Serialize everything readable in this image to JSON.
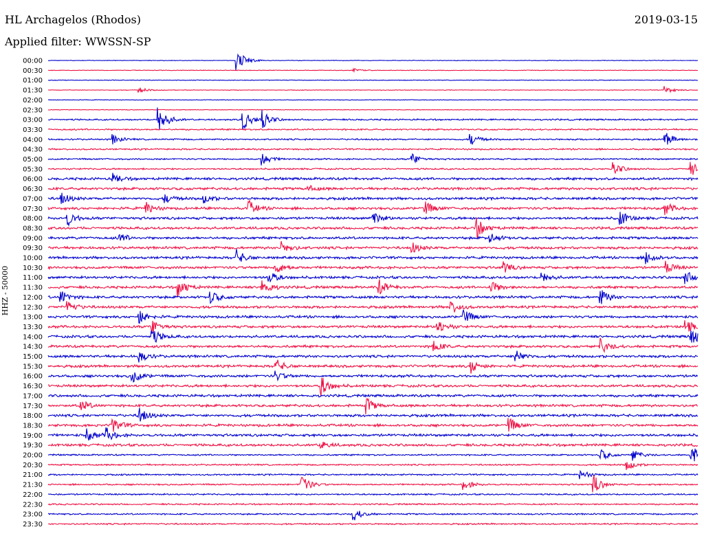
{
  "header": {
    "station": "HL Archagelos (Rhodos)",
    "filter": "Applied filter: WWSSN-SP",
    "date": "2019-03-15"
  },
  "chart_data": {
    "type": "line",
    "ylabel": "HHZ - 50000",
    "colors": [
      "#0000cc",
      "#ee1144"
    ],
    "tick_labels": [
      "00:00",
      "00:30",
      "01:00",
      "01:30",
      "02:00",
      "02:30",
      "03:00",
      "03:30",
      "04:00",
      "04:30",
      "05:00",
      "05:30",
      "06:00",
      "06:30",
      "07:00",
      "07:30",
      "08:00",
      "08:30",
      "09:00",
      "09:30",
      "10:00",
      "10:30",
      "11:00",
      "11:30",
      "12:00",
      "12:30",
      "13:00",
      "13:30",
      "14:00",
      "14:30",
      "15:00",
      "15:30",
      "16:00",
      "16:30",
      "17:00",
      "17:30",
      "18:00",
      "18:30",
      "19:00",
      "19:30",
      "20:00",
      "20:30",
      "21:00",
      "21:30",
      "22:00",
      "22:30",
      "23:00",
      "23:30"
    ],
    "events": [
      [
        0,
        0.29,
        3.0
      ],
      [
        1,
        0.47,
        0.4
      ],
      [
        3,
        0.14,
        0.6
      ],
      [
        3,
        0.95,
        0.8
      ],
      [
        6,
        0.17,
        3.5
      ],
      [
        6,
        0.3,
        2.2
      ],
      [
        6,
        0.33,
        2.0
      ],
      [
        8,
        0.1,
        1.0
      ],
      [
        8,
        0.65,
        1.3
      ],
      [
        8,
        0.95,
        1.5
      ],
      [
        10,
        0.33,
        1.3
      ],
      [
        10,
        0.56,
        1.2
      ],
      [
        11,
        0.87,
        1.6
      ],
      [
        11,
        0.99,
        1.4
      ],
      [
        12,
        0.1,
        1.0
      ],
      [
        13,
        0.4,
        0.6
      ],
      [
        14,
        0.02,
        1.2
      ],
      [
        14,
        0.18,
        0.9
      ],
      [
        14,
        0.24,
        0.9
      ],
      [
        15,
        0.15,
        1.3
      ],
      [
        15,
        0.31,
        1.4
      ],
      [
        15,
        0.58,
        1.4
      ],
      [
        15,
        0.95,
        1.2
      ],
      [
        16,
        0.03,
        1.6
      ],
      [
        16,
        0.5,
        1.4
      ],
      [
        16,
        0.88,
        1.6
      ],
      [
        17,
        0.66,
        2.0
      ],
      [
        18,
        0.11,
        1.0
      ],
      [
        18,
        0.68,
        1.0
      ],
      [
        19,
        0.36,
        1.3
      ],
      [
        19,
        0.56,
        1.1
      ],
      [
        20,
        0.29,
        1.6
      ],
      [
        20,
        0.92,
        1.5
      ],
      [
        21,
        0.35,
        1.4
      ],
      [
        21,
        0.7,
        1.2
      ],
      [
        21,
        0.95,
        1.3
      ],
      [
        22,
        0.34,
        1.3
      ],
      [
        22,
        0.76,
        1.3
      ],
      [
        22,
        0.98,
        1.4
      ],
      [
        23,
        0.2,
        2.0
      ],
      [
        23,
        0.33,
        1.8
      ],
      [
        23,
        0.51,
        1.5
      ],
      [
        23,
        0.68,
        1.7
      ],
      [
        24,
        0.02,
        1.4
      ],
      [
        24,
        0.25,
        1.4
      ],
      [
        24,
        0.85,
        1.8
      ],
      [
        25,
        0.03,
        1.3
      ],
      [
        25,
        0.62,
        1.5
      ],
      [
        26,
        0.14,
        1.5
      ],
      [
        26,
        0.64,
        1.4
      ],
      [
        27,
        0.16,
        1.6
      ],
      [
        27,
        0.6,
        1.5
      ],
      [
        27,
        0.98,
        1.6
      ],
      [
        28,
        0.16,
        1.7
      ],
      [
        28,
        0.99,
        1.9
      ],
      [
        29,
        0.59,
        1.7
      ],
      [
        29,
        0.85,
        1.6
      ],
      [
        30,
        0.14,
        1.2
      ],
      [
        30,
        0.72,
        1.4
      ],
      [
        31,
        0.35,
        1.5
      ],
      [
        31,
        0.65,
        1.5
      ],
      [
        32,
        0.13,
        1.4
      ],
      [
        32,
        0.35,
        1.0
      ],
      [
        33,
        0.42,
        2.2
      ],
      [
        35,
        0.05,
        1.2
      ],
      [
        35,
        0.49,
        1.6
      ],
      [
        36,
        0.14,
        1.6
      ],
      [
        37,
        0.1,
        1.6
      ],
      [
        37,
        0.71,
        1.4
      ],
      [
        38,
        0.06,
        1.2
      ],
      [
        38,
        0.09,
        1.4
      ],
      [
        39,
        0.42,
        0.8
      ],
      [
        40,
        0.85,
        1.3
      ],
      [
        40,
        0.9,
        1.1
      ],
      [
        40,
        0.99,
        2.0
      ],
      [
        41,
        0.89,
        1.2
      ],
      [
        42,
        0.82,
        1.0
      ],
      [
        43,
        0.39,
        2.2
      ],
      [
        43,
        0.64,
        1.2
      ],
      [
        43,
        0.84,
        1.9
      ],
      [
        46,
        0.47,
        1.4
      ]
    ]
  }
}
